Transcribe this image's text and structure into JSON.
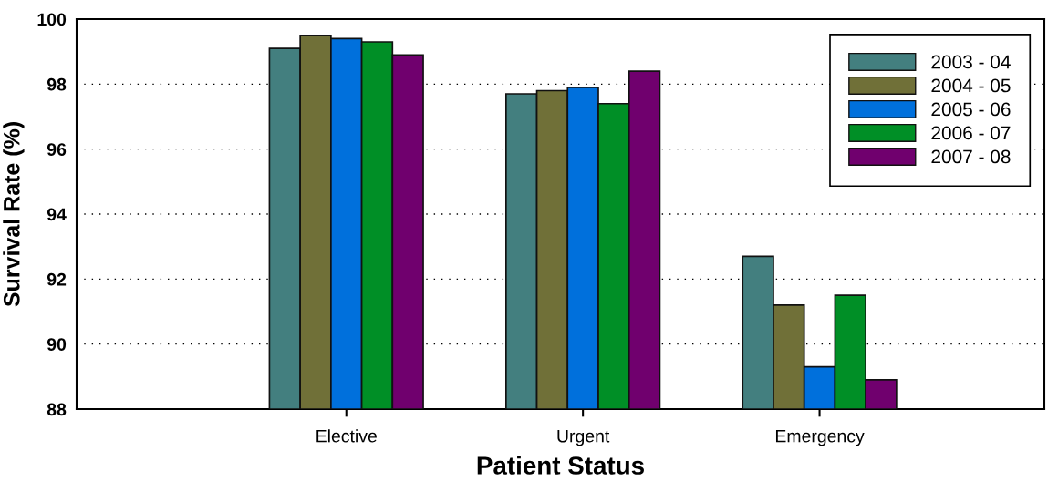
{
  "chart_data": {
    "type": "bar",
    "xlabel": "Patient Status",
    "ylabel": "Survival Rate (%)",
    "categories": [
      "Elective",
      "Urgent",
      "Emergency"
    ],
    "series": [
      {
        "name": "2003 - 04",
        "color": "#437f7f",
        "values": [
          99.1,
          97.7,
          92.7
        ]
      },
      {
        "name": "2004 - 05",
        "color": "#707038",
        "values": [
          99.5,
          97.8,
          91.2
        ]
      },
      {
        "name": "2005 - 06",
        "color": "#0070dc",
        "values": [
          99.4,
          97.9,
          89.3
        ]
      },
      {
        "name": "2006 - 07",
        "color": "#008f26",
        "values": [
          99.3,
          97.4,
          91.5
        ]
      },
      {
        "name": "2007 - 08",
        "color": "#70006e",
        "values": [
          98.9,
          98.4,
          88.9
        ]
      }
    ],
    "ylim": [
      88,
      100
    ],
    "yticks": [
      88,
      90,
      92,
      94,
      96,
      98,
      100
    ],
    "grid": "y",
    "legend": "top right"
  }
}
